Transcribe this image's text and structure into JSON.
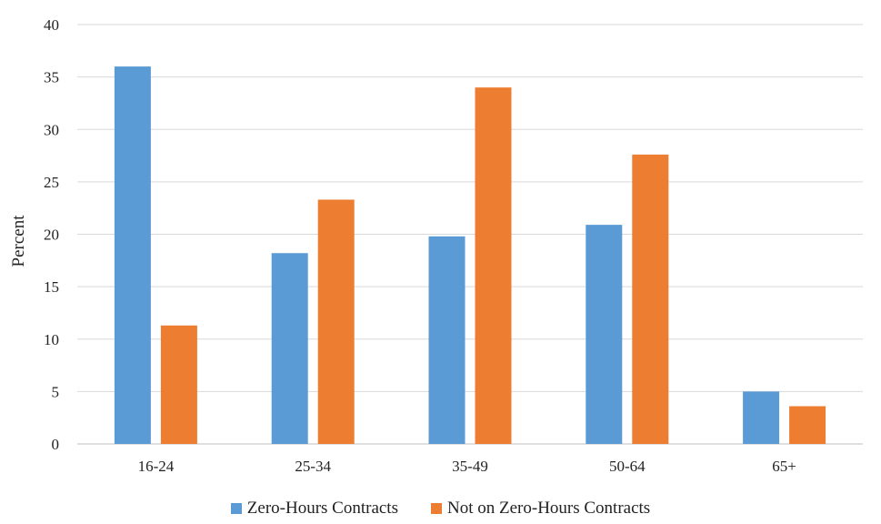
{
  "chart_data": {
    "type": "bar",
    "title": "",
    "xlabel": "",
    "ylabel": "Percent",
    "ylim": [
      0,
      40
    ],
    "yticks": [
      "0",
      "5",
      "10",
      "15",
      "20",
      "25",
      "30",
      "35",
      "40"
    ],
    "categories": [
      "16-24",
      "25-34",
      "35-49",
      "50-64",
      "65+"
    ],
    "series": [
      {
        "name": "Zero-Hours Contracts",
        "color": "#5b9bd5",
        "values": [
          36.0,
          18.2,
          19.8,
          20.9,
          5.0
        ]
      },
      {
        "name": "Not on Zero-Hours Contracts",
        "color": "#ed7d31",
        "values": [
          11.3,
          23.3,
          34.0,
          27.6,
          3.6
        ]
      }
    ],
    "grid": true,
    "legend_position": "bottom"
  }
}
